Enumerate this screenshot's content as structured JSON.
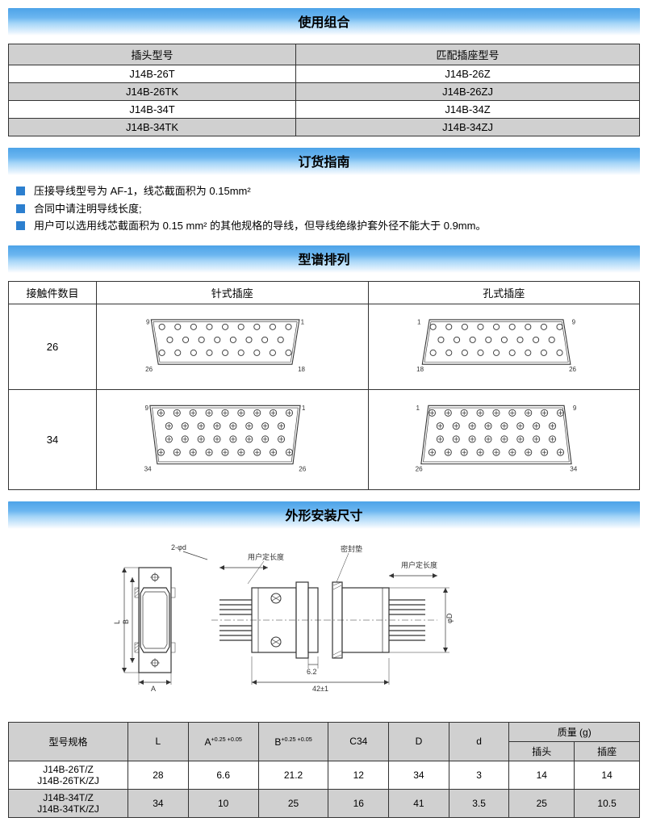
{
  "sections": {
    "usage": "使用组合",
    "ordering": "订货指南",
    "spectrum": "型谱排列",
    "dimensions": "外形安装尺寸"
  },
  "usageTable": {
    "headers": [
      "插头型号",
      "匹配插座型号"
    ],
    "rows": [
      {
        "plug": "J14B-26T",
        "socket": "J14B-26Z",
        "gray": false
      },
      {
        "plug": "J14B-26TK",
        "socket": "J14B-26ZJ",
        "gray": true
      },
      {
        "plug": "J14B-34T",
        "socket": "J14B-34Z",
        "gray": false
      },
      {
        "plug": "J14B-34TK",
        "socket": "J14B-34ZJ",
        "gray": true
      }
    ]
  },
  "orderingNotes": [
    "压接导线型号为 AF-1，线芯截面积为 0.15mm²",
    "合同中请注明导线长度;",
    "用户可以选用线芯截面积为 0.15 mm² 的其他规格的导线，但导线绝缘护套外径不能大于 0.9mm。"
  ],
  "spectrumTable": {
    "headers": [
      "接触件数目",
      "针式插座",
      "孔式插座"
    ],
    "rows": [
      {
        "count": "26",
        "pinLayout": {
          "rows": [
            9,
            8,
            9
          ],
          "style": "circle",
          "invert": true,
          "tl": "9",
          "tr": "1",
          "bl": "26",
          "br": "18"
        },
        "socketLayout": {
          "rows": [
            9,
            8,
            9
          ],
          "style": "circle",
          "invert": false,
          "tl": "1",
          "tr": "9",
          "bl": "18",
          "br": "26"
        }
      },
      {
        "count": "34",
        "pinLayout": {
          "rows": [
            9,
            8,
            8,
            9
          ],
          "style": "cross",
          "invert": true,
          "tl": "9",
          "tr": "1",
          "bl": "34",
          "br": "26"
        },
        "socketLayout": {
          "rows": [
            9,
            8,
            8,
            9
          ],
          "style": "cross",
          "invert": false,
          "tl": "1",
          "tr": "9",
          "bl": "26",
          "br": "34"
        }
      }
    ]
  },
  "dimsTable": {
    "headers": {
      "spec": "型号规格",
      "L": "L",
      "A": "A",
      "Atol": "+0.25\n+0.05",
      "B": "B",
      "Btol": "+0.25\n+0.05",
      "C": "C34",
      "D": "D",
      "d": "d",
      "mass": "质量 (g)",
      "plug": "插头",
      "socket": "插座"
    },
    "rows": [
      {
        "spec1": "J14B-26T/Z",
        "spec2": "J14B-26TK/ZJ",
        "L": "28",
        "A": "6.6",
        "B": "21.2",
        "C": "12",
        "D": "34",
        "d": "3",
        "mplug": "14",
        "msock": "14",
        "gray": false
      },
      {
        "spec1": "J14B-34T/Z",
        "spec2": "J14B-34TK/ZJ",
        "L": "34",
        "A": "10",
        "B": "25",
        "C": "16",
        "D": "41",
        "d": "3.5",
        "mplug": "25",
        "msock": "10.5",
        "gray": true
      }
    ]
  },
  "mechDrawing": {
    "label_2phi": "2-φd",
    "label_user": "用户定长度",
    "label_seal": "密封垫",
    "dim_62": "6.2",
    "dim_42": "42±1",
    "dim_L": "L",
    "dim_B": "B",
    "dim_A": "A",
    "dim_D": "φD"
  },
  "colors": {
    "headerGradientTop": "#4da3e8",
    "grayCell": "#d0d0d0",
    "bullet": "#2c7fcf",
    "border": "#333333"
  }
}
